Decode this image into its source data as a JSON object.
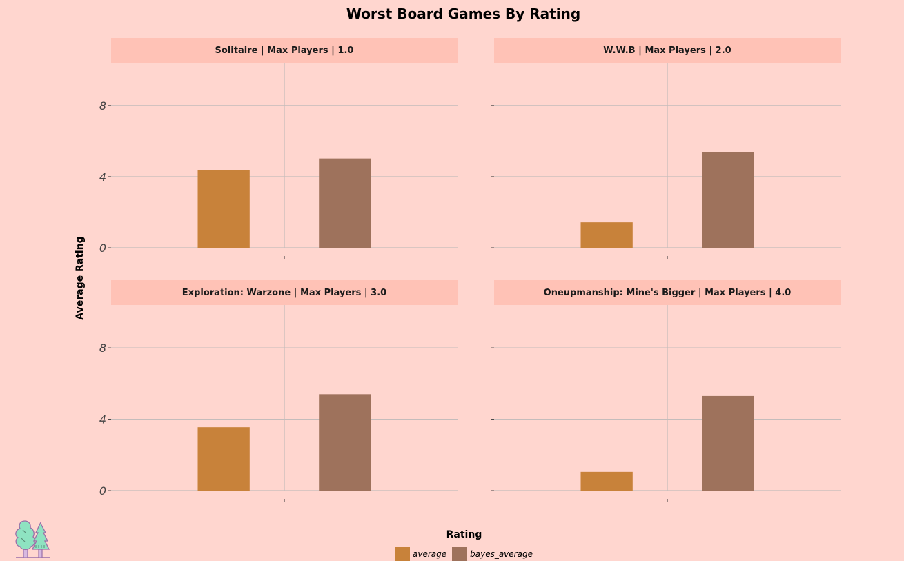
{
  "colors": {
    "background": "#ffd6cf",
    "strip": "#ffc2b6",
    "grid": "#c4bcbb",
    "average": "#c8823a",
    "bayes_average": "#9e725c"
  },
  "legend": {
    "title": "Rating",
    "items": [
      {
        "label": "average",
        "color": "#c8823a"
      },
      {
        "label": "bayes_average",
        "color": "#9e725c"
      }
    ]
  },
  "chart_data": {
    "type": "bar",
    "title": "Worst Board Games By Rating",
    "ylabel": "Average Rating",
    "xlabel": "",
    "ylim": [
      0,
      10.4
    ],
    "yticks": [
      0,
      4,
      8
    ],
    "ytick_labels": [
      "0",
      "4",
      "8"
    ],
    "legend_title": "Rating",
    "legend_position": "bottom",
    "grid": true,
    "categories": [
      "average",
      "bayes_average"
    ],
    "facets": [
      {
        "label": "Solitaire | Max Players | 1.0",
        "values": [
          4.35,
          5.02
        ]
      },
      {
        "label": "W.W.B | Max Players | 2.0",
        "values": [
          1.43,
          5.38
        ]
      },
      {
        "label": "Exploration: Warzone | Max Players | 3.0",
        "values": [
          3.55,
          5.4
        ]
      },
      {
        "label": "Oneupmanship: Mine's Bigger | Max Players | 4.0",
        "values": [
          1.05,
          5.3
        ]
      }
    ]
  }
}
